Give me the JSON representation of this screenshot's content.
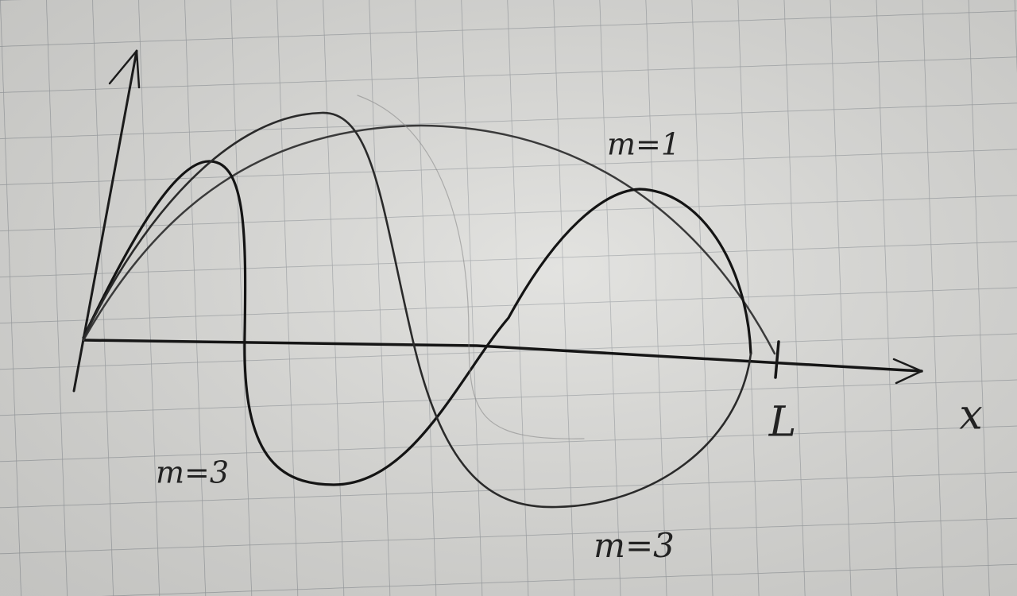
{
  "labels": {
    "mode_1": "m=1",
    "mode_3_left": "m=3",
    "mode_3_bottom": "m=3",
    "length": "L",
    "x_axis": "x"
  }
}
